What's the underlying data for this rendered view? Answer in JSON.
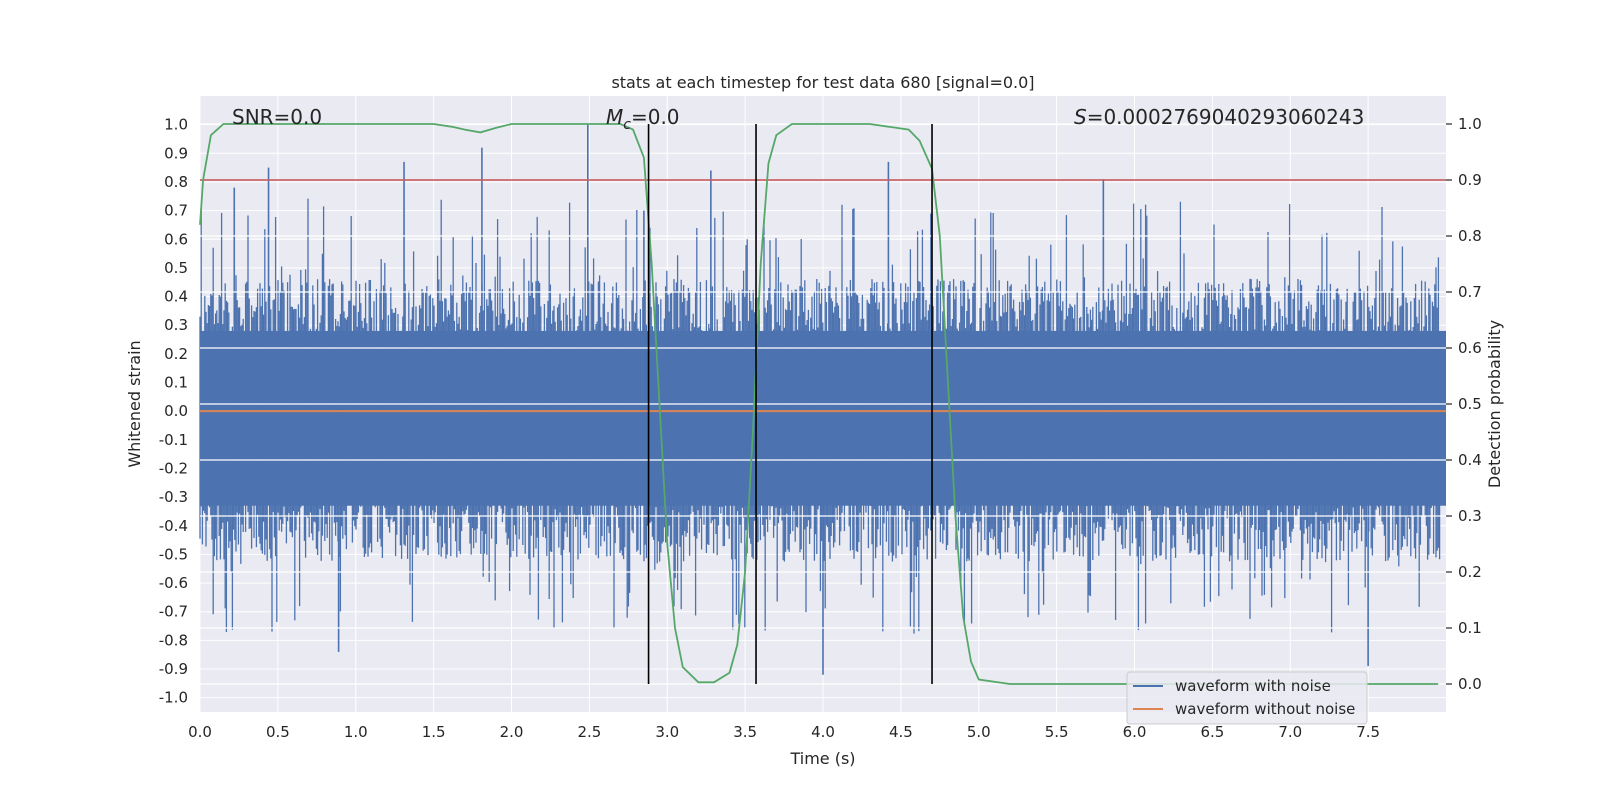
{
  "chart_data": {
    "type": "line",
    "title": "stats at each timestep for test data 680 [signal=0.0]",
    "xlabel": "Time (s)",
    "ylabel_left": "Whitened strain",
    "ylabel_right": "Detection probability",
    "xlim": [
      0.0,
      8.0
    ],
    "ylim_left": [
      -1.05,
      1.1
    ],
    "ylim_right": [
      -0.05,
      1.05
    ],
    "x_ticks": [
      "0.0",
      "0.5",
      "1.0",
      "1.5",
      "2.0",
      "2.5",
      "3.0",
      "3.5",
      "4.0",
      "4.5",
      "5.0",
      "5.5",
      "6.0",
      "6.5",
      "7.0",
      "7.5"
    ],
    "y_left_ticks": [
      "1.0",
      "0.9",
      "0.8",
      "0.7",
      "0.6",
      "0.5",
      "0.4",
      "0.3",
      "0.2",
      "0.1",
      "0.0",
      "-0.1",
      "-0.2",
      "-0.3",
      "-0.4",
      "-0.5",
      "-0.6",
      "-0.7",
      "-0.8",
      "-0.9",
      "-1.0"
    ],
    "y_right_ticks": [
      "1.0",
      "0.9",
      "0.8",
      "0.7",
      "0.6",
      "0.5",
      "0.4",
      "0.3",
      "0.2",
      "0.1",
      "0.0"
    ],
    "grid": true,
    "legend_placement": "lower-right",
    "annotations": {
      "snr": "SNR=0.0",
      "mc_symbol": "M",
      "mc_sub": "c",
      "mc_value": "=0.0",
      "s_symbol": "S",
      "s_value": "=0.0002769040293060243"
    },
    "colors": {
      "noise": "#4c72b0",
      "clean": "#dd8452",
      "probability": "#55a868",
      "threshold": "#c44e52",
      "markers": "#000000",
      "plot_bg": "#eaeaf2",
      "grid": "#ffffff"
    },
    "series": [
      {
        "name": "waveform with noise",
        "axis": "left",
        "envelope": {
          "noise_floor": 0.42,
          "peaks": [
            {
              "x": 0.44,
              "y": 0.85
            },
            {
              "x": 1.31,
              "y": 0.87
            },
            {
              "x": 1.81,
              "y": 0.92
            },
            {
              "x": 2.49,
              "y": 1.0
            },
            {
              "x": 0.89,
              "y": -0.84
            },
            {
              "x": 4.0,
              "y": -0.92
            },
            {
              "x": 7.5,
              "y": -0.89
            },
            {
              "x": 5.8,
              "y": 0.81
            },
            {
              "x": 4.42,
              "y": 0.87
            },
            {
              "x": 3.28,
              "y": 0.84
            },
            {
              "x": 2.85,
              "y": 0.7
            },
            {
              "x": 0.22,
              "y": 0.78
            }
          ]
        }
      },
      {
        "name": "waveform without noise",
        "axis": "left",
        "x": [
          0.0,
          8.0
        ],
        "y": [
          0.0,
          0.0
        ]
      },
      {
        "axis": "right",
        "x": [
          0.0,
          0.02,
          0.07,
          0.15,
          0.3,
          0.6,
          1.0,
          1.5,
          1.62,
          1.7,
          1.8,
          1.9,
          2.0,
          2.5,
          2.7,
          2.78,
          2.85,
          2.9,
          2.95,
          3.0,
          3.05,
          3.1,
          3.2,
          3.3,
          3.4,
          3.45,
          3.5,
          3.55,
          3.6,
          3.65,
          3.7,
          3.8,
          3.9,
          4.0,
          4.3,
          4.55,
          4.62,
          4.7,
          4.75,
          4.8,
          4.85,
          4.9,
          4.95,
          5.0,
          5.2,
          6.0,
          7.0,
          7.95
        ],
        "y": [
          0.82,
          0.9,
          0.98,
          1.0,
          1.0,
          1.0,
          1.0,
          1.0,
          0.995,
          0.99,
          0.985,
          0.993,
          1.0,
          1.0,
          1.0,
          0.99,
          0.94,
          0.75,
          0.5,
          0.25,
          0.1,
          0.03,
          0.003,
          0.003,
          0.02,
          0.07,
          0.2,
          0.45,
          0.75,
          0.93,
          0.98,
          1.0,
          1.0,
          1.0,
          1.0,
          0.99,
          0.97,
          0.92,
          0.8,
          0.55,
          0.3,
          0.12,
          0.04,
          0.008,
          0.0,
          0.0,
          0.0,
          0.0
        ]
      },
      {
        "axis": "right",
        "x": [
          0.0,
          8.0
        ],
        "y": [
          0.9,
          0.9
        ]
      }
    ],
    "vertical_markers": [
      2.88,
      3.57,
      4.7
    ]
  }
}
